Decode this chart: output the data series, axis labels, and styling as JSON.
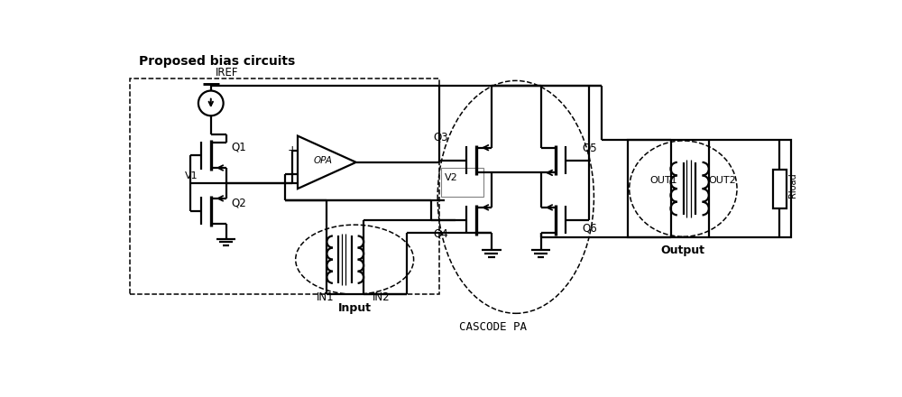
{
  "fig_width": 10.0,
  "fig_height": 4.4,
  "dpi": 100,
  "bg_color": "#ffffff",
  "lc": "#000000",
  "lw": 1.6,
  "bias_title": "Proposed bias circuits",
  "cascode_label": "CASCODE PA",
  "input_label": "Input",
  "output_label": "Output",
  "iref_label": "IREF",
  "v1_label": "V1",
  "v2_label": "V2",
  "opa_label": "OPA",
  "q1_label": "Q1",
  "q2_label": "Q2",
  "q3_label": "Q3",
  "q4_label": "Q4",
  "q5_label": "Q5",
  "q6_label": "Q6",
  "in1_label": "IN1",
  "in2_label": "IN2",
  "out1_label": "OUT1",
  "out2_label": "OUT2",
  "rload_label": "Rload"
}
